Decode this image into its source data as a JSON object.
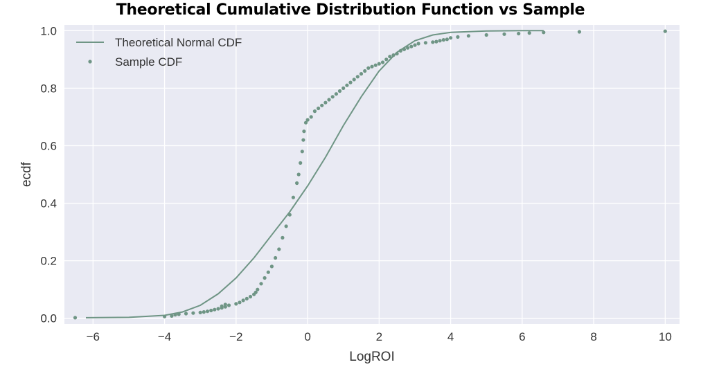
{
  "chart_data": {
    "type": "line",
    "title": "Theoretical Cumulative Distribution Function vs Sample",
    "xlabel": "LogROI",
    "ylabel": "ecdf",
    "xlim": [
      -6.8,
      10.4
    ],
    "ylim": [
      -0.02,
      1.02
    ],
    "xticks": [
      -6,
      -4,
      -2,
      0,
      2,
      4,
      6,
      8,
      10
    ],
    "yticks": [
      0.0,
      0.2,
      0.4,
      0.6,
      0.8,
      1.0
    ],
    "xtick_labels": [
      "−6",
      "−4",
      "−2",
      "0",
      "2",
      "4",
      "6",
      "8",
      "10"
    ],
    "ytick_labels": [
      "0.0",
      "0.2",
      "0.4",
      "0.6",
      "0.8",
      "1.0"
    ],
    "grid": true,
    "legend_position": "top-left",
    "series": [
      {
        "name": "Theoretical Normal CDF",
        "kind": "line",
        "color": "#6f9585",
        "x": [
          -6.2,
          -5,
          -4,
          -3.5,
          -3,
          -2.5,
          -2,
          -1.5,
          -1,
          -0.5,
          0,
          0.5,
          1,
          1.5,
          2,
          2.5,
          3,
          3.5,
          4,
          5,
          6,
          6.6
        ],
        "y": [
          0.002,
          0.003,
          0.01,
          0.022,
          0.045,
          0.085,
          0.14,
          0.21,
          0.29,
          0.37,
          0.46,
          0.56,
          0.67,
          0.77,
          0.86,
          0.925,
          0.965,
          0.985,
          0.994,
          0.999,
          1.0,
          1.0
        ]
      },
      {
        "name": "Sample CDF",
        "kind": "scatter",
        "color": "#6f9585",
        "points": [
          [
            -6.5,
            0.002
          ],
          [
            -4,
            0.006
          ],
          [
            -3.8,
            0.008
          ],
          [
            -3.7,
            0.012
          ],
          [
            -3.6,
            0.014
          ],
          [
            -3.4,
            0.016
          ],
          [
            -3.2,
            0.018
          ],
          [
            -3.0,
            0.02
          ],
          [
            -2.9,
            0.022
          ],
          [
            -2.8,
            0.024
          ],
          [
            -2.7,
            0.027
          ],
          [
            -2.6,
            0.03
          ],
          [
            -2.5,
            0.033
          ],
          [
            -2.4,
            0.036
          ],
          [
            -2.3,
            0.04
          ],
          [
            -2.2,
            0.045
          ],
          [
            -2.4,
            0.042
          ],
          [
            -2.3,
            0.048
          ],
          [
            -2.0,
            0.05
          ],
          [
            -1.9,
            0.055
          ],
          [
            -1.8,
            0.062
          ],
          [
            -1.7,
            0.068
          ],
          [
            -1.6,
            0.075
          ],
          [
            -1.5,
            0.083
          ],
          [
            -1.45,
            0.09
          ],
          [
            -1.4,
            0.1
          ],
          [
            -1.3,
            0.12
          ],
          [
            -1.2,
            0.14
          ],
          [
            -1.1,
            0.16
          ],
          [
            -1.0,
            0.18
          ],
          [
            -0.9,
            0.21
          ],
          [
            -0.8,
            0.24
          ],
          [
            -0.7,
            0.28
          ],
          [
            -0.6,
            0.32
          ],
          [
            -0.5,
            0.36
          ],
          [
            -0.4,
            0.42
          ],
          [
            -0.3,
            0.47
          ],
          [
            -0.25,
            0.5
          ],
          [
            -0.2,
            0.54
          ],
          [
            -0.15,
            0.58
          ],
          [
            -0.12,
            0.62
          ],
          [
            -0.1,
            0.65
          ],
          [
            -0.05,
            0.68
          ],
          [
            0.0,
            0.69
          ],
          [
            0.1,
            0.7
          ],
          [
            0.2,
            0.72
          ],
          [
            0.3,
            0.73
          ],
          [
            0.4,
            0.74
          ],
          [
            0.5,
            0.75
          ],
          [
            0.6,
            0.76
          ],
          [
            0.7,
            0.77
          ],
          [
            0.8,
            0.78
          ],
          [
            0.9,
            0.79
          ],
          [
            1.0,
            0.8
          ],
          [
            1.1,
            0.81
          ],
          [
            1.2,
            0.82
          ],
          [
            1.3,
            0.83
          ],
          [
            1.4,
            0.84
          ],
          [
            1.5,
            0.85
          ],
          [
            1.6,
            0.86
          ],
          [
            1.7,
            0.87
          ],
          [
            1.8,
            0.875
          ],
          [
            1.9,
            0.88
          ],
          [
            2.0,
            0.885
          ],
          [
            2.1,
            0.89
          ],
          [
            2.2,
            0.9
          ],
          [
            2.3,
            0.91
          ],
          [
            2.4,
            0.915
          ],
          [
            2.5,
            0.92
          ],
          [
            2.6,
            0.93
          ],
          [
            2.7,
            0.935
          ],
          [
            2.8,
            0.94
          ],
          [
            2.9,
            0.945
          ],
          [
            3.0,
            0.95
          ],
          [
            3.1,
            0.955
          ],
          [
            3.3,
            0.958
          ],
          [
            3.5,
            0.96
          ],
          [
            3.6,
            0.962
          ],
          [
            3.7,
            0.965
          ],
          [
            3.8,
            0.968
          ],
          [
            3.9,
            0.97
          ],
          [
            4.0,
            0.975
          ],
          [
            4.2,
            0.978
          ],
          [
            4.5,
            0.982
          ],
          [
            5.0,
            0.985
          ],
          [
            5.5,
            0.988
          ],
          [
            5.9,
            0.99
          ],
          [
            6.2,
            0.992
          ],
          [
            6.6,
            0.994
          ],
          [
            7.6,
            0.996
          ],
          [
            10.0,
            0.998
          ]
        ]
      }
    ]
  }
}
